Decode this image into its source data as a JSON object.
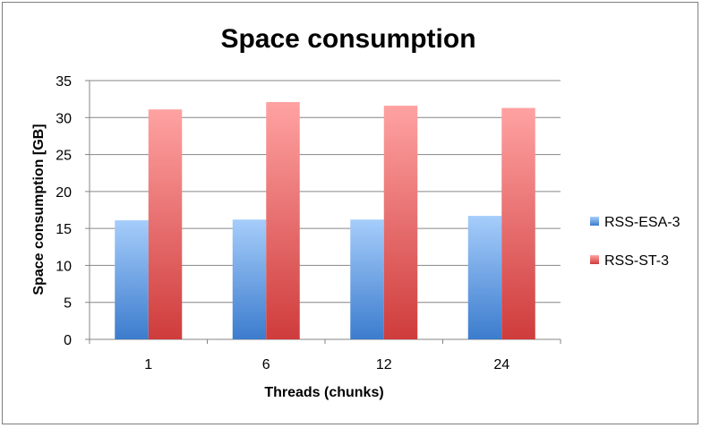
{
  "chart_data": {
    "type": "bar",
    "title": "Space consumption",
    "xlabel": "Threads (chunks)",
    "ylabel": "Space consumption [GB]",
    "categories": [
      "1",
      "6",
      "12",
      "24"
    ],
    "ylim": [
      0,
      35
    ],
    "yticks": [
      0,
      5,
      10,
      15,
      20,
      25,
      30,
      35
    ],
    "grid": true,
    "legend_position": "right",
    "series": [
      {
        "name": "RSS-ESA-3",
        "values": [
          16.1,
          16.2,
          16.2,
          16.7
        ],
        "color_light": "#a6cdfb",
        "color_dark": "#3c7ccd"
      },
      {
        "name": "RSS-ST-3",
        "values": [
          31.1,
          32.1,
          31.6,
          31.3
        ],
        "color_light": "#ffa2a2",
        "color_dark": "#cf3c3c"
      }
    ]
  }
}
